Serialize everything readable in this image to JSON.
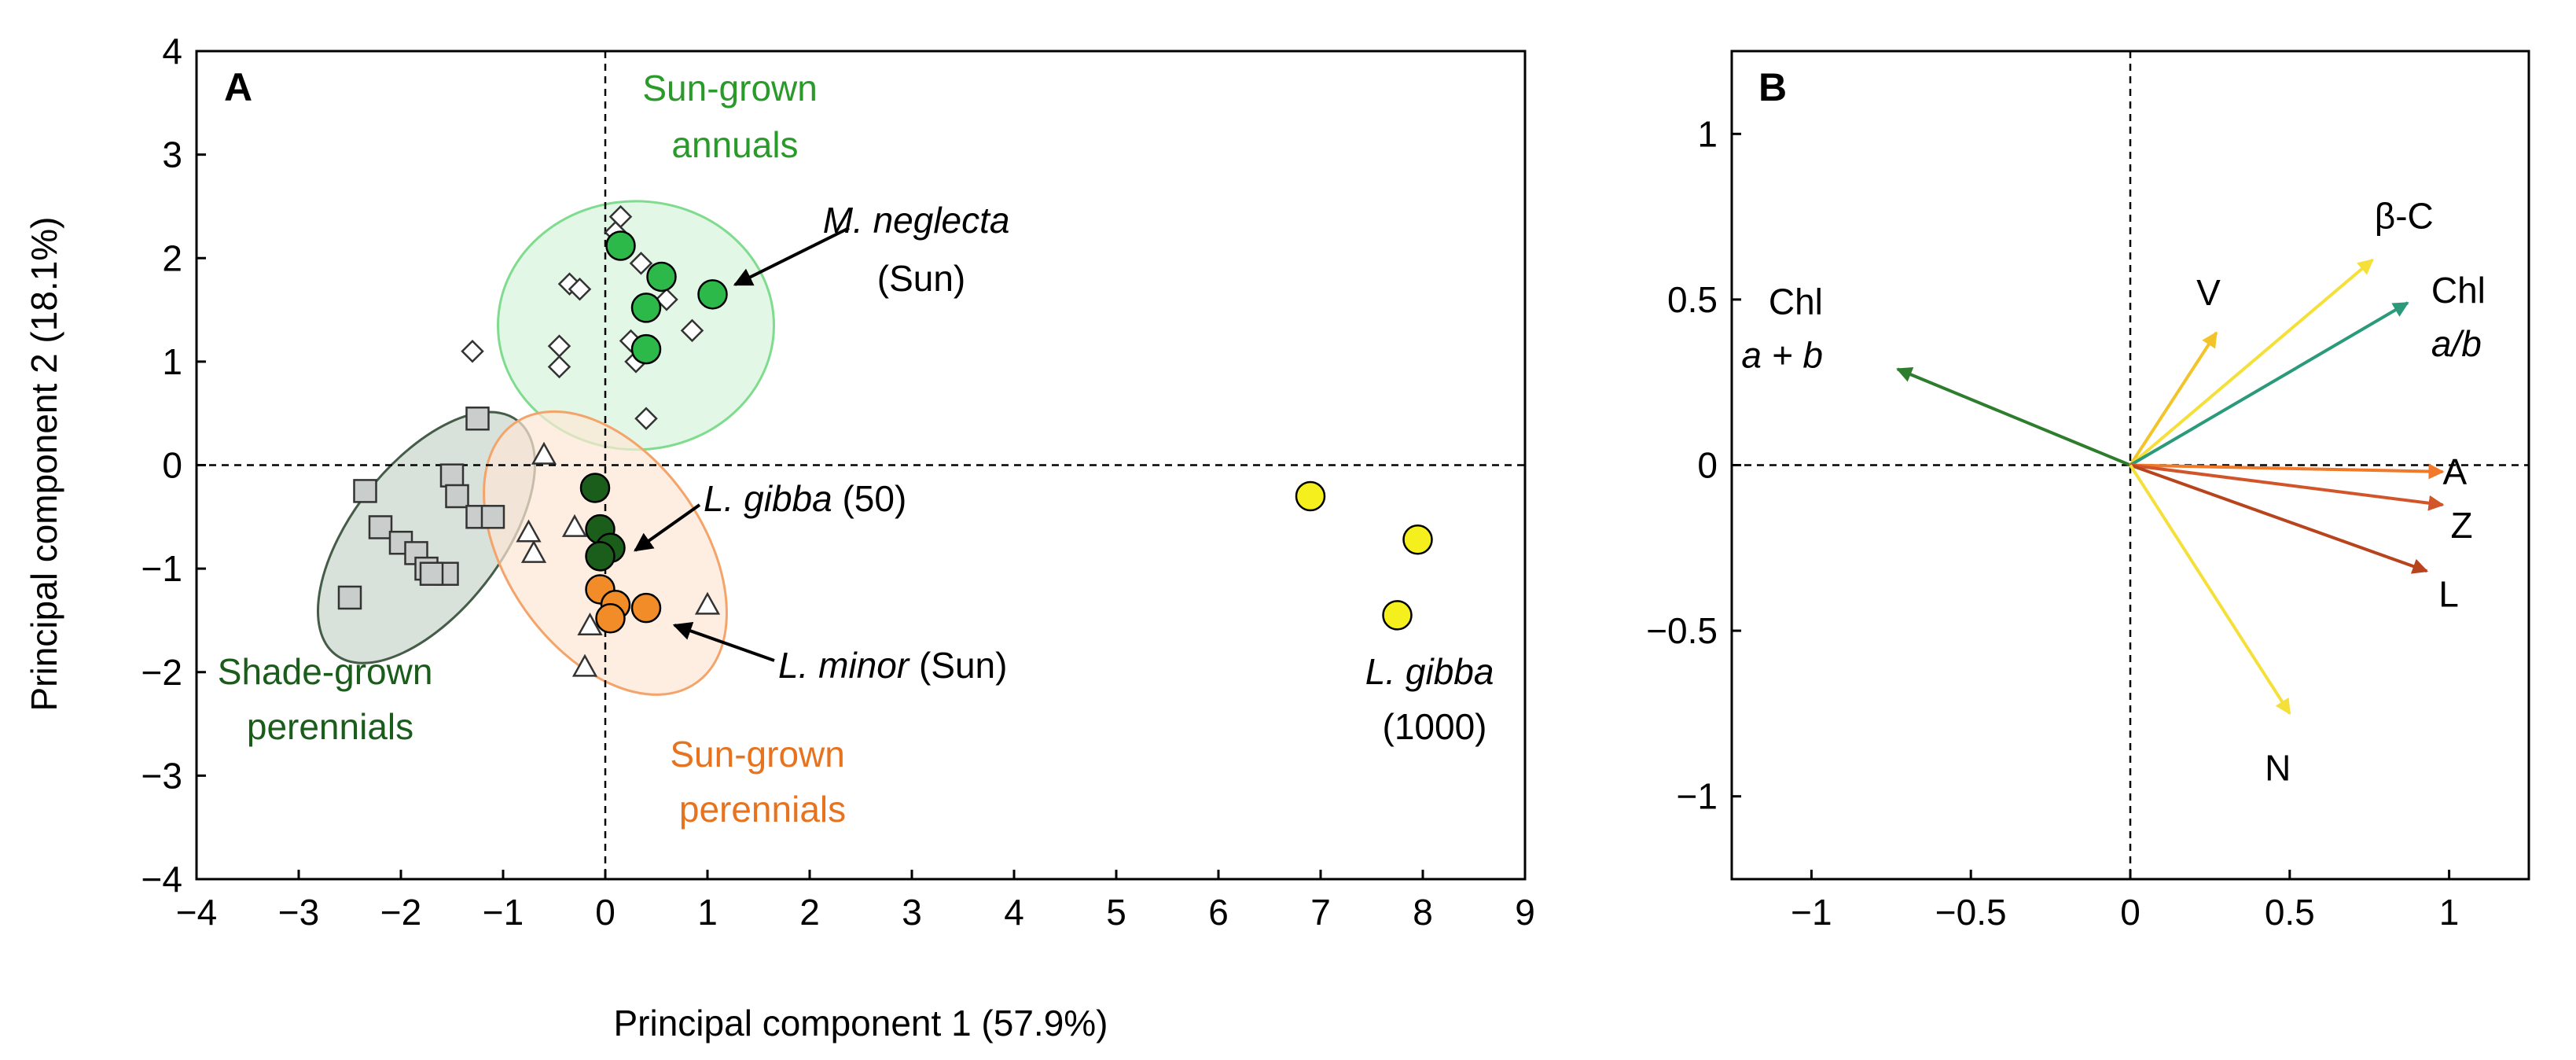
{
  "chart_data": [
    {
      "panel": "A",
      "type": "scatter",
      "xlabel": "Principal component 1 (57.9%)",
      "ylabel": "Principal component 2 (18.1%)",
      "xlim": [
        -4,
        9
      ],
      "ylim": [
        -4,
        4
      ],
      "xticks": [
        -4,
        -3,
        -2,
        -1,
        0,
        1,
        2,
        3,
        4,
        5,
        6,
        7,
        8,
        9
      ],
      "yticks": [
        -4,
        -3,
        -2,
        -1,
        0,
        1,
        2,
        3,
        4
      ],
      "colors": {
        "sun_annual_fill": "#2db84a",
        "shade_perennial_fill": "#1b5e1b",
        "sun_perennial_fill": "#f28c28",
        "lgibba1000_fill": "#f5ef1e",
        "square_fill": "#c9cdcc",
        "ellipse_green": "#7fdc8e",
        "ellipse_grey": "#445c48",
        "ellipse_orange": "#f4a46a",
        "label_green": "#2a9a2a",
        "label_darkgreen": "#1a5c1a",
        "label_orange": "#e8731e"
      },
      "ellipses": [
        {
          "name": "sun-grown-annuals-ellipse",
          "cx": 0.3,
          "cy": 1.35,
          "rx": 1.35,
          "ry": 1.2,
          "angle": 0,
          "stroke": "#7fdc8e",
          "fill": "#d6f3da"
        },
        {
          "name": "shade-grown-perennials-ellipse",
          "cx": -1.75,
          "cy": -0.7,
          "rx": 1.45,
          "ry": 0.72,
          "angle": 52,
          "stroke": "#445c48",
          "fill": "#c8d4ca"
        },
        {
          "name": "sun-grown-perennials-ellipse",
          "cx": 0.0,
          "cy": -0.85,
          "rx": 1.55,
          "ry": 0.95,
          "angle": -55,
          "stroke": "#f4a46a",
          "fill": "#fde7d6"
        }
      ],
      "series": [
        {
          "name": "Sun-grown annuals (other species)",
          "marker": "diamond",
          "points": [
            [
              0.15,
              2.4
            ],
            [
              0.1,
              2.25
            ],
            [
              -0.35,
              1.75
            ],
            [
              -0.25,
              1.7
            ],
            [
              0.35,
              1.95
            ],
            [
              0.6,
              1.6
            ],
            [
              0.25,
              1.2
            ],
            [
              -0.45,
              1.15
            ],
            [
              0.85,
              1.3
            ],
            [
              -1.3,
              1.1
            ],
            [
              -0.45,
              0.95
            ],
            [
              0.3,
              1.0
            ],
            [
              0.4,
              0.45
            ]
          ]
        },
        {
          "name": "M. neglecta (Sun)",
          "marker": "circle",
          "fill": "#2db84a",
          "points": [
            [
              0.15,
              2.12
            ],
            [
              0.55,
              1.82
            ],
            [
              1.05,
              1.65
            ],
            [
              0.4,
              1.52
            ],
            [
              0.4,
              1.12
            ]
          ]
        },
        {
          "name": "Shade-grown perennials",
          "marker": "square",
          "points": [
            [
              -1.25,
              0.45
            ],
            [
              -1.5,
              -0.1
            ],
            [
              -1.45,
              -0.3
            ],
            [
              -1.25,
              -0.5
            ],
            [
              -1.1,
              -0.5
            ],
            [
              -2.35,
              -0.25
            ],
            [
              -2.2,
              -0.6
            ],
            [
              -2.0,
              -0.75
            ],
            [
              -1.85,
              -0.85
            ],
            [
              -1.75,
              -1.0
            ],
            [
              -1.55,
              -1.05
            ],
            [
              -1.7,
              -1.05
            ],
            [
              -2.5,
              -1.28
            ]
          ]
        },
        {
          "name": "L. gibba (50)",
          "marker": "circle",
          "fill": "#1b5e1b",
          "points": [
            [
              -0.1,
              -0.22
            ],
            [
              -0.05,
              -0.62
            ],
            [
              0.05,
              -0.8
            ],
            [
              -0.05,
              -0.88
            ]
          ]
        },
        {
          "name": "Sun-grown perennials (other species)",
          "marker": "triangle",
          "points": [
            [
              -0.6,
              0.1
            ],
            [
              -0.75,
              -0.65
            ],
            [
              -0.7,
              -0.85
            ],
            [
              -0.3,
              -0.6
            ],
            [
              -0.15,
              -1.55
            ],
            [
              1.0,
              -1.35
            ],
            [
              -0.2,
              -1.95
            ]
          ]
        },
        {
          "name": "L. minor (Sun)",
          "marker": "circle",
          "fill": "#f28c28",
          "points": [
            [
              -0.05,
              -1.2
            ],
            [
              0.1,
              -1.35
            ],
            [
              0.4,
              -1.38
            ],
            [
              0.05,
              -1.48
            ]
          ]
        },
        {
          "name": "L. gibba (1000)",
          "marker": "circle",
          "fill": "#f5ef1e",
          "points": [
            [
              6.9,
              -0.3
            ],
            [
              7.95,
              -0.72
            ],
            [
              7.75,
              -1.45
            ]
          ]
        }
      ],
      "labels": {
        "panel": "A",
        "sun_annuals": [
          "Sun-grown",
          "annuals"
        ],
        "m_neglecta": [
          "M. neglecta",
          "(Sun)"
        ],
        "l_gibba50": [
          "L. gibba",
          " (50)"
        ],
        "l_minor": [
          "L. minor",
          " (Sun)"
        ],
        "l_gibba1000": [
          "L. gibba",
          "(1000)"
        ],
        "shade_perennials": [
          "Shade-grown",
          "perennials"
        ],
        "sun_perennials": [
          "Sun-grown",
          "perennials"
        ]
      }
    },
    {
      "panel": "B",
      "type": "biplot-loadings",
      "xlim": [
        -1.25,
        1.25
      ],
      "ylim": [
        -1.25,
        1.25
      ],
      "xticks": [
        -1,
        -0.5,
        0,
        0.5,
        1
      ],
      "yticks": [
        -1,
        -0.5,
        0,
        0.5,
        1
      ],
      "vectors": [
        {
          "name": "Chl a + b",
          "label": [
            "Chl",
            "a + b"
          ],
          "x": -0.73,
          "y": 0.29,
          "color": "#2e7d2e"
        },
        {
          "name": "V",
          "label": [
            "V"
          ],
          "x": 0.27,
          "y": 0.4,
          "color": "#f2c42a"
        },
        {
          "name": "β-C",
          "label": [
            "β-C"
          ],
          "x": 0.76,
          "y": 0.62,
          "color": "#f5e03a"
        },
        {
          "name": "Chl a/b",
          "label": [
            "Chl",
            "a/b"
          ],
          "x": 0.87,
          "y": 0.49,
          "color": "#2a9a7a"
        },
        {
          "name": "A",
          "label": [
            "A"
          ],
          "x": 0.98,
          "y": -0.02,
          "color": "#f07a2a"
        },
        {
          "name": "Z",
          "label": [
            "Z"
          ],
          "x": 0.98,
          "y": -0.12,
          "color": "#d2552a"
        },
        {
          "name": "L",
          "label": [
            "L"
          ],
          "x": 0.93,
          "y": -0.32,
          "color": "#b8441e"
        },
        {
          "name": "N",
          "label": [
            "N"
          ],
          "x": 0.5,
          "y": -0.75,
          "color": "#f5e03a"
        }
      ],
      "labels": {
        "panel": "B"
      }
    }
  ]
}
